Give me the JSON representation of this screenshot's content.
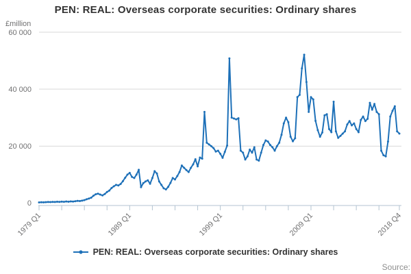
{
  "title": "PEN: REAL: Overseas corporate securities: Ordinary shares",
  "y_axis": {
    "unit_label": "£million",
    "ticks": [
      "60 000",
      "40 000",
      "20 000",
      "0"
    ],
    "min": 0,
    "max": 60000
  },
  "x_axis": {
    "labeled_ticks": [
      "1979 Q1",
      "1989 Q1",
      "1999 Q1",
      "2009 Q1",
      "2018 Q4"
    ],
    "labeled_tick_indices": [
      0,
      40,
      80,
      120,
      159
    ],
    "minor_tick_every_quarters": 10
  },
  "legend": {
    "marker": "line-dot-icon",
    "label": "PEN: REAL: Overseas corporate securities: Ordinary shares"
  },
  "source_label": "Source:",
  "colors": {
    "series": "#1d70b8",
    "grid": "#d9d9d9",
    "axis": "#b3c3d1",
    "muted_text": "#707071",
    "dark_text": "#333333"
  },
  "chart_data": {
    "type": "line",
    "title": "PEN: REAL: Overseas corporate securities: Ordinary shares",
    "ylabel": "£million",
    "ylim": [
      0,
      60000
    ],
    "grid": "horizontal",
    "legend_position": "bottom",
    "frequency": "quarterly",
    "x_start": "1979 Q1",
    "x_end": "2018 Q4",
    "values": [
      250,
      300,
      280,
      340,
      400,
      350,
      430,
      380,
      480,
      420,
      520,
      460,
      560,
      490,
      600,
      530,
      650,
      780,
      720,
      860,
      1050,
      1350,
      1600,
      1900,
      2600,
      3100,
      3300,
      3000,
      2700,
      3200,
      3900,
      4400,
      5300,
      5900,
      6400,
      6200,
      6700,
      7700,
      8900,
      10000,
      10600,
      9200,
      8800,
      10000,
      11700,
      5600,
      7000,
      7600,
      8000,
      6800,
      8800,
      11200,
      10400,
      7600,
      6400,
      5200,
      4800,
      5700,
      7100,
      8800,
      8300,
      9500,
      10900,
      13200,
      12400,
      11600,
      10900,
      12400,
      13600,
      15400,
      12900,
      16000,
      15600,
      32000,
      21200,
      20600,
      20000,
      19300,
      18100,
      18400,
      17300,
      15900,
      18000,
      20200,
      50800,
      30000,
      29700,
      29400,
      29800,
      18400,
      17700,
      15300,
      16400,
      18800,
      17700,
      19600,
      15300,
      14900,
      17700,
      20400,
      22000,
      21600,
      20400,
      19600,
      18400,
      20000,
      21200,
      24000,
      28000,
      30000,
      28400,
      23300,
      21700,
      22800,
      37200,
      38000,
      47300,
      52100,
      42500,
      32000,
      37200,
      36400,
      28900,
      25600,
      23300,
      24800,
      30800,
      31200,
      26000,
      24900,
      35600,
      25200,
      22900,
      23600,
      24400,
      25200,
      27600,
      28800,
      27300,
      28000,
      26000,
      24900,
      29200,
      30400,
      28800,
      29600,
      35200,
      32800,
      34800,
      32000,
      31200,
      18400,
      16800,
      16400,
      21600,
      30400,
      32400,
      34000,
      25200,
      24400
    ]
  }
}
